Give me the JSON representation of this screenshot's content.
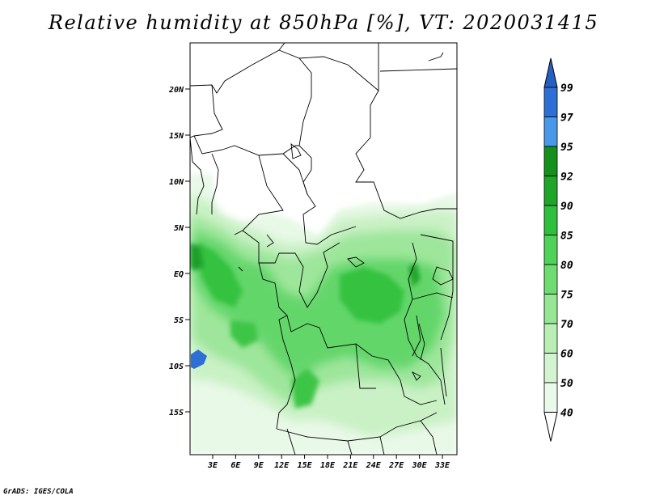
{
  "title": "Relative humidity at 850hPa [%], VT: 2020031415",
  "footer": "GrADS: IGES/COLA",
  "map": {
    "lon_range": [
      0,
      35
    ],
    "lat_range": [
      -20,
      25
    ],
    "lat_ticks": [
      "20N",
      "15N",
      "10N",
      "5N",
      "EQ",
      "5S",
      "10S",
      "15S"
    ],
    "lon_ticks": [
      "3E",
      "6E",
      "9E",
      "12E",
      "15E",
      "18E",
      "21E",
      "24E",
      "27E",
      "30E",
      "33E"
    ]
  },
  "colorbar": {
    "labels": [
      "99",
      "97",
      "95",
      "92",
      "90",
      "85",
      "80",
      "75",
      "70",
      "60",
      "50",
      "40"
    ],
    "colors": {
      "c97_99": "#2e6fd6",
      "c95_97": "#4a98ea",
      "c92_95": "#13911c",
      "c90_92": "#1fa52a",
      "c85_90": "#2fbf3c",
      "c80_85": "#4fd258",
      "c75_80": "#6fdc72",
      "c70_75": "#97e696",
      "c60_70": "#b9eeb6",
      "c50_60": "#d4f4d1",
      "c40_50": "#eafaea",
      "below40": "#ffffff",
      "above99": "#245fc4"
    }
  }
}
